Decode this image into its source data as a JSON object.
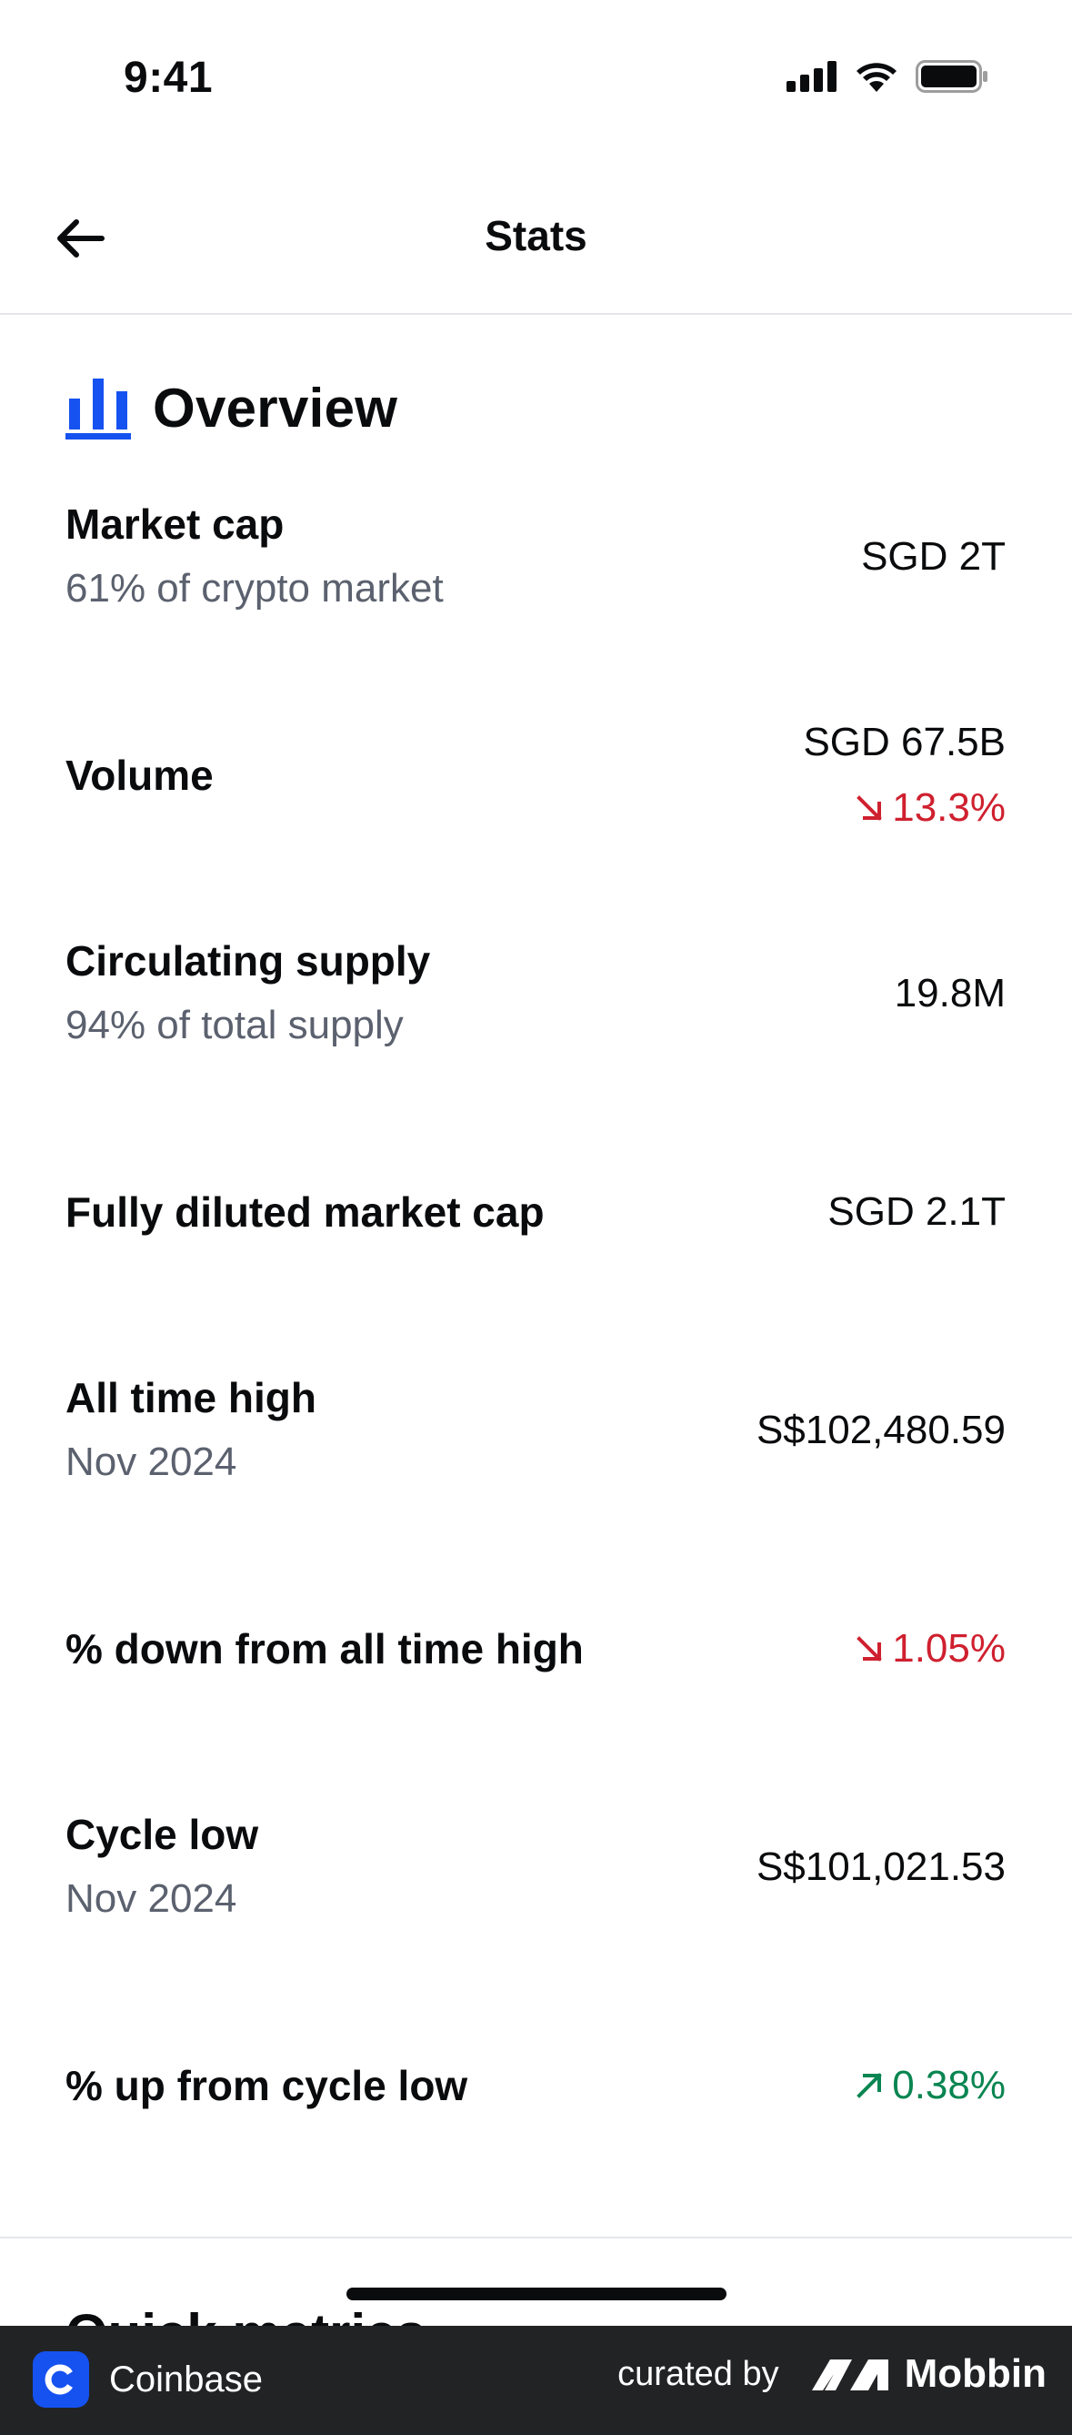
{
  "status_bar": {
    "time": "9:41"
  },
  "header": {
    "title": "Stats"
  },
  "overview": {
    "title": "Overview",
    "rows": [
      {
        "label": "Market cap",
        "sub": "61% of crypto market",
        "value": "SGD 2T"
      },
      {
        "label": "Volume",
        "value": "SGD 67.5B",
        "change": "13.3%",
        "change_direction": "down"
      },
      {
        "label": "Circulating supply",
        "sub": "94% of total supply",
        "value": "19.8M"
      },
      {
        "label": "Fully diluted market cap",
        "value": "SGD 2.1T"
      },
      {
        "label": "All time high",
        "sub": "Nov 2024",
        "value": "S$102,480.59"
      },
      {
        "label": "% down from all time high",
        "change": "1.05%",
        "change_direction": "down"
      },
      {
        "label": "Cycle low",
        "sub": "Nov 2024",
        "value": "S$101,021.53"
      },
      {
        "label": "% up from cycle low",
        "change": "0.38%",
        "change_direction": "up"
      }
    ]
  },
  "next_section_peek": "Quick metrics",
  "banner": {
    "brand": "Coinbase",
    "curated_by": "curated by",
    "curator": "Mobbin"
  },
  "colors": {
    "accent": "#1652f0",
    "negative": "#cf202f",
    "positive": "#098551",
    "muted": "#5b616e"
  }
}
